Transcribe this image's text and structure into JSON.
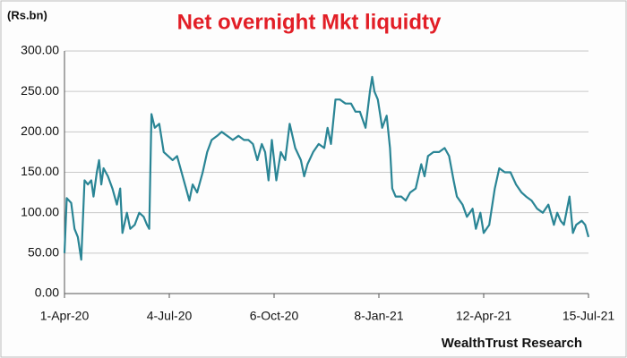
{
  "chart_data": {
    "type": "line",
    "title": "Net overnight Mkt liquidty",
    "unit_label": "(Rs.bn)",
    "source": "WealthTrust Research",
    "x": [
      "2020-04-01",
      "2020-04-03",
      "2020-04-07",
      "2020-04-10",
      "2020-04-13",
      "2020-04-16",
      "2020-04-19",
      "2020-04-22",
      "2020-04-25",
      "2020-04-27",
      "2020-04-30",
      "2020-05-02",
      "2020-05-04",
      "2020-05-06",
      "2020-05-10",
      "2020-05-14",
      "2020-05-18",
      "2020-05-21",
      "2020-05-23",
      "2020-05-27",
      "2020-05-30",
      "2020-06-03",
      "2020-06-07",
      "2020-06-11",
      "2020-06-14",
      "2020-06-16",
      "2020-06-18",
      "2020-06-21",
      "2020-06-25",
      "2020-06-29",
      "2020-07-03",
      "2020-07-07",
      "2020-07-11",
      "2020-07-15",
      "2020-07-19",
      "2020-07-22",
      "2020-07-25",
      "2020-07-29",
      "2020-08-03",
      "2020-08-07",
      "2020-08-11",
      "2020-08-16",
      "2020-08-20",
      "2020-08-25",
      "2020-08-30",
      "2020-09-04",
      "2020-09-09",
      "2020-09-13",
      "2020-09-17",
      "2020-09-21",
      "2020-09-25",
      "2020-09-28",
      "2020-10-01",
      "2020-10-04",
      "2020-10-08",
      "2020-10-12",
      "2020-10-16",
      "2020-10-20",
      "2020-10-25",
      "2020-10-30",
      "2020-11-02",
      "2020-11-05",
      "2020-11-10",
      "2020-11-15",
      "2020-11-20",
      "2020-11-23",
      "2020-11-26",
      "2020-11-30",
      "2020-12-04",
      "2020-12-09",
      "2020-12-14",
      "2020-12-18",
      "2020-12-22",
      "2020-12-27",
      "2020-12-31",
      "2021-01-02",
      "2021-01-04",
      "2021-01-07",
      "2021-01-11",
      "2021-01-15",
      "2021-01-18",
      "2021-01-20",
      "2021-01-23",
      "2021-01-28",
      "2021-02-01",
      "2021-02-05",
      "2021-02-10",
      "2021-02-15",
      "2021-02-18",
      "2021-02-21",
      "2021-02-26",
      "2021-03-03",
      "2021-03-08",
      "2021-03-12",
      "2021-03-16",
      "2021-03-19",
      "2021-03-24",
      "2021-03-28",
      "2021-04-02",
      "2021-04-05",
      "2021-04-09",
      "2021-04-12",
      "2021-04-17",
      "2021-04-22",
      "2021-04-26",
      "2021-05-01",
      "2021-05-06",
      "2021-05-11",
      "2021-05-16",
      "2021-05-20",
      "2021-05-25",
      "2021-05-30",
      "2021-06-04",
      "2021-06-09",
      "2021-06-14",
      "2021-06-17",
      "2021-06-20",
      "2021-06-23",
      "2021-06-28",
      "2021-07-01",
      "2021-07-04",
      "2021-07-09",
      "2021-07-12",
      "2021-07-15"
    ],
    "series": [
      {
        "name": "Net overnight liquidity",
        "color": "#2a8595",
        "values": [
          50,
          118,
          112,
          80,
          70,
          42,
          140,
          135,
          140,
          120,
          150,
          165,
          135,
          155,
          145,
          130,
          110,
          130,
          75,
          100,
          80,
          85,
          100,
          95,
          85,
          80,
          222,
          205,
          210,
          175,
          170,
          165,
          170,
          150,
          130,
          115,
          135,
          125,
          150,
          175,
          190,
          195,
          200,
          195,
          190,
          195,
          190,
          190,
          185,
          165,
          185,
          175,
          140,
          190,
          140,
          175,
          165,
          210,
          180,
          165,
          145,
          160,
          175,
          185,
          180,
          205,
          185,
          240,
          240,
          235,
          235,
          225,
          225,
          205,
          250,
          268,
          250,
          240,
          205,
          220,
          180,
          130,
          120,
          120,
          115,
          125,
          130,
          160,
          145,
          170,
          175,
          175,
          180,
          170,
          140,
          120,
          110,
          95,
          105,
          80,
          100,
          75,
          85,
          130,
          155,
          150,
          150,
          135,
          125,
          120,
          115,
          105,
          100,
          110,
          85,
          100,
          90,
          85,
          120,
          75,
          85,
          90,
          85,
          70
        ]
      }
    ],
    "xlim": [
      "2020-04-01",
      "2021-07-15"
    ],
    "xticks": [
      {
        "value": "2020-04-01",
        "label": "1-Apr-20"
      },
      {
        "value": "2020-07-04",
        "label": "4-Jul-20"
      },
      {
        "value": "2020-10-06",
        "label": "6-Oct-20"
      },
      {
        "value": "2021-01-08",
        "label": "8-Jan-21"
      },
      {
        "value": "2021-04-12",
        "label": "12-Apr-21"
      },
      {
        "value": "2021-07-15",
        "label": "15-Jul-21"
      }
    ],
    "ylim": [
      0,
      300
    ],
    "yticks": [
      {
        "value": 0,
        "label": "0.00"
      },
      {
        "value": 50,
        "label": "50.00"
      },
      {
        "value": 100,
        "label": "100.00"
      },
      {
        "value": 150,
        "label": "150.00"
      },
      {
        "value": 200,
        "label": "200.00"
      },
      {
        "value": 250,
        "label": "250.00"
      },
      {
        "value": 300,
        "label": "300.00"
      }
    ],
    "grid": true
  }
}
